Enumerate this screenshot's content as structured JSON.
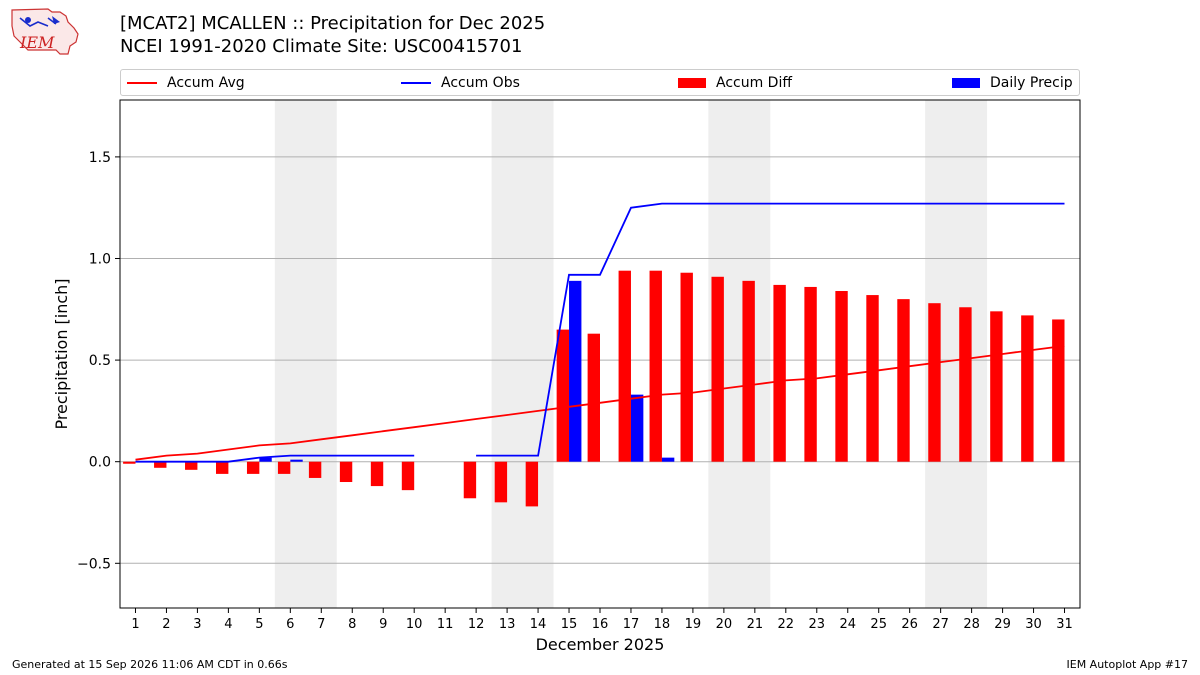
{
  "header": {
    "logo_text": "IEM",
    "title_line1": "[MCAT2] MCALLEN :: Precipitation for Dec 2025",
    "title_line2": "NCEI 1991-2020 Climate Site: USC00415701"
  },
  "footer": {
    "left": "Generated at 15 Sep 2026 11:06 AM CDT in 0.66s",
    "right": "IEM Autoplot App #17"
  },
  "colors": {
    "avg": "#ff0000",
    "obs": "#0000ff",
    "diff": "#ff0000",
    "daily": "#0000ff",
    "weekend_shade": "#eeeeee",
    "grid": "#b0b0b0"
  },
  "chart_data": {
    "type": "bar",
    "xlabel": "December 2025",
    "ylabel": "Precipitation [inch]",
    "ylim": [
      -0.72,
      1.78
    ],
    "yticks": [
      1.5,
      1.0,
      0.5,
      0.0,
      -0.5
    ],
    "ytick_labels": [
      "1.5",
      "1.0",
      "0.5",
      "0.0",
      "−0.5"
    ],
    "xlim": [
      0.5,
      31.5
    ],
    "days": [
      1,
      2,
      3,
      4,
      5,
      6,
      7,
      8,
      9,
      10,
      11,
      12,
      13,
      14,
      15,
      16,
      17,
      18,
      19,
      20,
      21,
      22,
      23,
      24,
      25,
      26,
      27,
      28,
      29,
      30,
      31
    ],
    "grid": "horizontal",
    "legend_placement": "top",
    "shaded_days": [
      [
        5.5,
        7.5
      ],
      [
        12.5,
        14.5
      ],
      [
        19.5,
        21.5
      ],
      [
        26.5,
        28.5
      ]
    ],
    "series": [
      {
        "name": "Accum Avg",
        "kind": "line",
        "values": [
          0.01,
          0.03,
          0.04,
          0.06,
          0.08,
          0.09,
          0.11,
          0.13,
          0.15,
          0.17,
          0.19,
          0.21,
          0.23,
          0.25,
          0.27,
          0.29,
          0.31,
          0.33,
          0.34,
          0.36,
          0.38,
          0.4,
          0.41,
          0.43,
          0.45,
          0.47,
          0.49,
          0.51,
          0.53,
          0.55,
          0.57
        ]
      },
      {
        "name": "Accum Obs",
        "kind": "line",
        "values": [
          0.0,
          0.0,
          0.0,
          0.0,
          0.02,
          0.03,
          0.03,
          0.03,
          0.03,
          0.03,
          null,
          0.03,
          0.03,
          0.03,
          0.92,
          0.92,
          1.25,
          1.27,
          1.27,
          1.27,
          1.27,
          1.27,
          1.27,
          1.27,
          1.27,
          1.27,
          1.27,
          1.27,
          1.27,
          1.27,
          1.27
        ]
      },
      {
        "name": "Accum Diff",
        "kind": "bar",
        "values": [
          -0.01,
          -0.03,
          -0.04,
          -0.06,
          -0.06,
          -0.06,
          -0.08,
          -0.1,
          -0.12,
          -0.14,
          null,
          -0.18,
          -0.2,
          -0.22,
          0.65,
          0.63,
          0.94,
          0.94,
          0.93,
          0.91,
          0.89,
          0.87,
          0.86,
          0.84,
          0.82,
          0.8,
          0.78,
          0.76,
          0.74,
          0.72,
          0.7
        ]
      },
      {
        "name": "Daily Precip",
        "kind": "bar",
        "values": [
          0,
          0,
          0,
          0,
          0.02,
          0.01,
          0,
          0,
          0,
          0,
          0,
          0,
          0,
          0,
          0.89,
          0,
          0.33,
          0.02,
          0,
          0,
          0,
          0,
          0,
          0,
          0,
          0,
          0,
          0,
          0,
          0,
          0
        ]
      }
    ]
  }
}
